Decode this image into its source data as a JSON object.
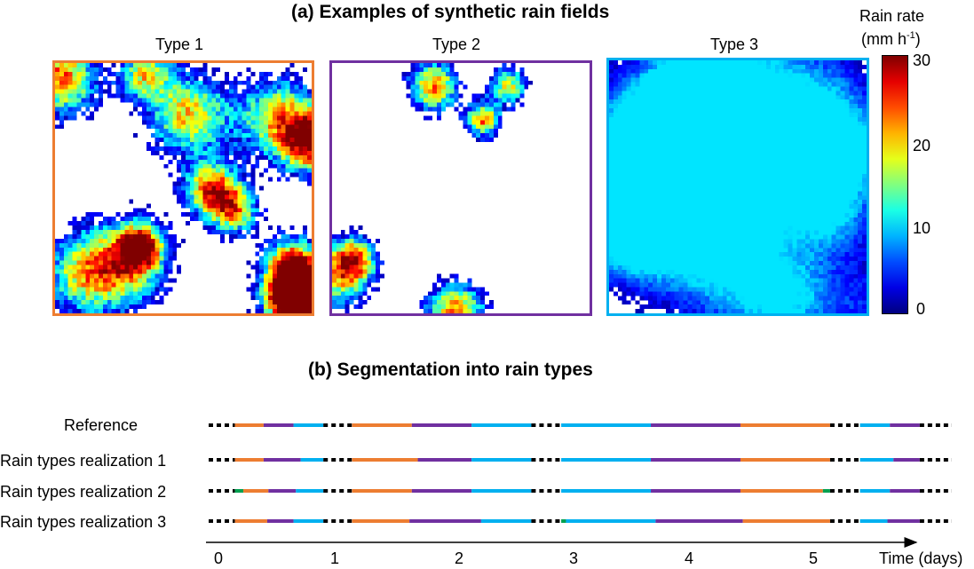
{
  "panel_a": {
    "title": "(a) Examples of synthetic rain fields",
    "fields": [
      {
        "label": "Type 1",
        "border_color": "#ED7D31"
      },
      {
        "label": "Type 2",
        "border_color": "#7030A0"
      },
      {
        "label": "Type 3",
        "border_color": "#00B0F0"
      }
    ],
    "colorbar": {
      "title_line1": "Rain rate",
      "title_line2_base": "(mm h",
      "title_line2_sup": "-1",
      "title_line2_end": ")",
      "ticks": [
        "30",
        "20",
        "10",
        "0"
      ],
      "range": [
        0,
        30
      ]
    }
  },
  "panel_b": {
    "title": "(b) Segmentation into rain types",
    "rows": [
      {
        "label": "Reference"
      },
      {
        "label": "Rain types realization 1"
      },
      {
        "label": "Rain types realization 2"
      },
      {
        "label": "Rain types realization 3"
      }
    ],
    "type_colors": {
      "1": "#ED7D31",
      "2": "#7030A0",
      "3": "#00B0F0",
      "other": "#00A050"
    },
    "axis": {
      "ticks": [
        "0",
        "1",
        "2",
        "3",
        "4",
        "5"
      ],
      "label": "Time (days)",
      "range": [
        0,
        6
      ]
    }
  },
  "segmentation": [
    {
      "row": 0,
      "segments": [
        {
          "t": "gap",
          "start": 0.0,
          "end": 0.22
        },
        {
          "t": "1",
          "start": 0.22,
          "end": 0.46
        },
        {
          "t": "2",
          "start": 0.46,
          "end": 0.71
        },
        {
          "t": "3",
          "start": 0.71,
          "end": 0.96
        },
        {
          "t": "gap",
          "start": 0.96,
          "end": 1.2
        },
        {
          "t": "1",
          "start": 1.2,
          "end": 1.7
        },
        {
          "t": "2",
          "start": 1.7,
          "end": 2.2
        },
        {
          "t": "3",
          "start": 2.2,
          "end": 2.7
        },
        {
          "t": "gap",
          "start": 2.7,
          "end": 2.95
        },
        {
          "t": "3",
          "start": 2.95,
          "end": 3.7
        },
        {
          "t": "2",
          "start": 3.7,
          "end": 4.45
        },
        {
          "t": "1",
          "start": 4.45,
          "end": 5.2
        },
        {
          "t": "gap",
          "start": 5.2,
          "end": 5.45
        },
        {
          "t": "3",
          "start": 5.45,
          "end": 5.7
        },
        {
          "t": "2",
          "start": 5.7,
          "end": 5.95
        },
        {
          "t": "gap",
          "start": 5.95,
          "end": 6.25
        }
      ]
    },
    {
      "row": 1,
      "segments": [
        {
          "t": "gap",
          "start": 0.0,
          "end": 0.22
        },
        {
          "t": "1",
          "start": 0.22,
          "end": 0.46
        },
        {
          "t": "2",
          "start": 0.46,
          "end": 0.77
        },
        {
          "t": "3",
          "start": 0.77,
          "end": 0.96
        },
        {
          "t": "gap",
          "start": 0.96,
          "end": 1.2
        },
        {
          "t": "1",
          "start": 1.2,
          "end": 1.75
        },
        {
          "t": "2",
          "start": 1.75,
          "end": 2.2
        },
        {
          "t": "3",
          "start": 2.2,
          "end": 2.7
        },
        {
          "t": "gap",
          "start": 2.7,
          "end": 2.95
        },
        {
          "t": "3",
          "start": 2.95,
          "end": 3.7
        },
        {
          "t": "2",
          "start": 3.7,
          "end": 4.45
        },
        {
          "t": "1",
          "start": 4.45,
          "end": 5.2
        },
        {
          "t": "gap",
          "start": 5.2,
          "end": 5.45
        },
        {
          "t": "3",
          "start": 5.45,
          "end": 5.73
        },
        {
          "t": "2",
          "start": 5.73,
          "end": 5.95
        },
        {
          "t": "gap",
          "start": 5.95,
          "end": 6.25
        }
      ]
    },
    {
      "row": 2,
      "segments": [
        {
          "t": "gap",
          "start": 0.0,
          "end": 0.22
        },
        {
          "t": "other",
          "start": 0.22,
          "end": 0.29
        },
        {
          "t": "1",
          "start": 0.29,
          "end": 0.5
        },
        {
          "t": "2",
          "start": 0.5,
          "end": 0.73
        },
        {
          "t": "3",
          "start": 0.73,
          "end": 0.96
        },
        {
          "t": "gap",
          "start": 0.96,
          "end": 1.2
        },
        {
          "t": "1",
          "start": 1.2,
          "end": 1.7
        },
        {
          "t": "2",
          "start": 1.7,
          "end": 2.2
        },
        {
          "t": "3",
          "start": 2.2,
          "end": 2.7
        },
        {
          "t": "gap",
          "start": 2.7,
          "end": 2.95
        },
        {
          "t": "3",
          "start": 2.95,
          "end": 3.7
        },
        {
          "t": "2",
          "start": 3.7,
          "end": 4.45
        },
        {
          "t": "1",
          "start": 4.45,
          "end": 5.14
        },
        {
          "t": "other",
          "start": 5.14,
          "end": 5.2
        },
        {
          "t": "gap",
          "start": 5.2,
          "end": 5.45
        },
        {
          "t": "3",
          "start": 5.45,
          "end": 5.7
        },
        {
          "t": "2",
          "start": 5.7,
          "end": 5.95
        },
        {
          "t": "gap",
          "start": 5.95,
          "end": 6.25
        }
      ]
    },
    {
      "row": 3,
      "segments": [
        {
          "t": "gap",
          "start": 0.0,
          "end": 0.22
        },
        {
          "t": "1",
          "start": 0.22,
          "end": 0.49
        },
        {
          "t": "2",
          "start": 0.49,
          "end": 0.71
        },
        {
          "t": "3",
          "start": 0.71,
          "end": 0.96
        },
        {
          "t": "gap",
          "start": 0.96,
          "end": 1.2
        },
        {
          "t": "1",
          "start": 1.2,
          "end": 1.68
        },
        {
          "t": "2",
          "start": 1.68,
          "end": 2.28
        },
        {
          "t": "3",
          "start": 2.28,
          "end": 2.7
        },
        {
          "t": "gap",
          "start": 2.7,
          "end": 2.95
        },
        {
          "t": "other",
          "start": 2.95,
          "end": 2.99
        },
        {
          "t": "3",
          "start": 2.99,
          "end": 3.74
        },
        {
          "t": "2",
          "start": 3.74,
          "end": 4.47
        },
        {
          "t": "1",
          "start": 4.47,
          "end": 5.2
        },
        {
          "t": "gap",
          "start": 5.2,
          "end": 5.45
        },
        {
          "t": "3",
          "start": 5.45,
          "end": 5.68
        },
        {
          "t": "2",
          "start": 5.68,
          "end": 5.95
        },
        {
          "t": "gap",
          "start": 5.95,
          "end": 6.25
        }
      ]
    }
  ]
}
